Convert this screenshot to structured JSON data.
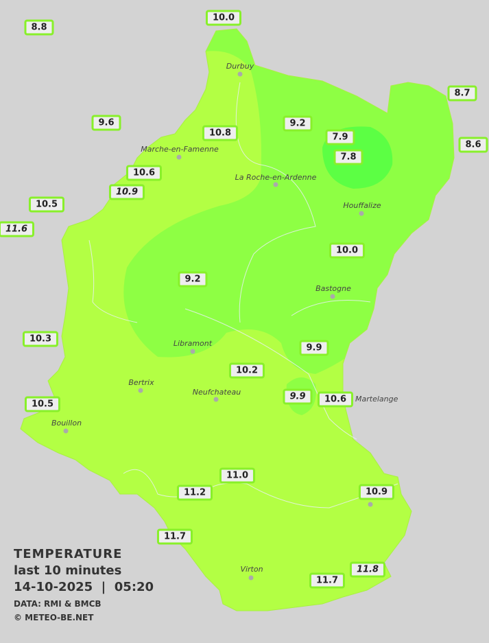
{
  "legend": {
    "title": "TEMPERATURE",
    "period": "last 10 minutes",
    "datetime": "14-10-2025  |  05:20",
    "source": "DATA: RMI & BMCB",
    "copyright": "© METEO-BE.NET"
  },
  "colors": {
    "background": "#d3d3d3",
    "zone_warm": "#b3ff44",
    "zone_mid": "#8eff44",
    "zone_cold": "#5cff44",
    "label_border": "#88f02a"
  },
  "cities": [
    "Durbuy",
    "Marche-en-Famenne",
    "La Roche-en-Ardenne",
    "Houffalize",
    "Bastogne",
    "Libramont",
    "Bertrix",
    "Neufchateau",
    "Martelange",
    "Bouillon",
    "Virton"
  ],
  "stations": [
    "8.8",
    "10.0",
    "8.7",
    "8.6",
    "9.6",
    "9.2",
    "7.9",
    "7.8",
    "10.8",
    "10.6",
    "10.9",
    "10.5",
    "11.6",
    "10.0",
    "9.2",
    "10.3",
    "9.9",
    "10.2",
    "9.9",
    "10.6",
    "10.5",
    "11.0",
    "11.2",
    "10.9",
    "11.7",
    "11.7",
    "11.8"
  ]
}
